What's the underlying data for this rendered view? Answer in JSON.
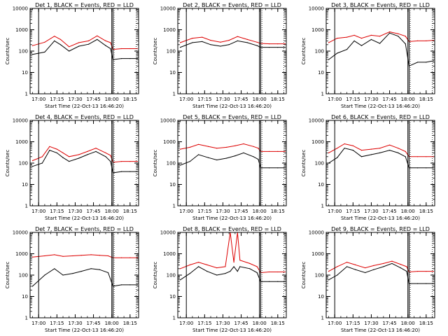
{
  "figure": {
    "colors": {
      "background": "#ffffff",
      "black_series": "#000000",
      "red_series": "#dd0000"
    }
  },
  "chart_data": [
    {
      "type": "line",
      "title": "Det 1, BLACK = Events, RED = LLD",
      "xlabel": "Start Time (22-Oct-13 16:46:20)",
      "ylabel": "Counts/sec",
      "yscale": "log",
      "ylim": [
        1,
        10000
      ],
      "xlim": [
        "16:53",
        "18:22"
      ],
      "x_ticks": [
        "17:00",
        "17:15",
        "17:30",
        "17:45",
        "18:00",
        "18:15"
      ],
      "y_ticks": [
        "1",
        "10",
        "100",
        "1000",
        "10000"
      ],
      "x": [
        "16:55",
        "17:05",
        "17:13",
        "17:18",
        "17:25",
        "17:33",
        "17:41",
        "17:48",
        "17:55",
        "17:59",
        "18:01",
        "18:08",
        "18:15",
        "18:21"
      ],
      "series": [
        {
          "name": "Events",
          "color": "#000000",
          "values": [
            70,
            90,
            300,
            200,
            100,
            170,
            210,
            350,
            180,
            130,
            40,
            45,
            45,
            45
          ]
        },
        {
          "name": "LLD",
          "color": "#dd0000",
          "values": [
            180,
            260,
            500,
            350,
            160,
            250,
            300,
            520,
            300,
            250,
            120,
            130,
            130,
            130
          ]
        }
      ],
      "vlines": [
        "17:00",
        "18:00",
        "18:01"
      ],
      "vlines_dotted": [
        "18:02",
        "18:20"
      ]
    },
    {
      "type": "line",
      "title": "Det 2, BLACK = Events, RED = LLD",
      "xlabel": "Start Time (22-Oct-13 16:46:20)",
      "ylabel": "Counts/sec",
      "yscale": "log",
      "ylim": [
        1,
        10000
      ],
      "xlim": [
        "16:53",
        "18:22"
      ],
      "x_ticks": [
        "17:00",
        "17:15",
        "17:30",
        "17:45",
        "18:00",
        "18:15"
      ],
      "y_ticks": [
        "1",
        "10",
        "100",
        "1000",
        "10000"
      ],
      "x": [
        "16:55",
        "17:05",
        "17:13",
        "17:20",
        "17:28",
        "17:35",
        "17:42",
        "17:50",
        "17:58",
        "18:01",
        "18:08",
        "18:15",
        "18:21"
      ],
      "series": [
        {
          "name": "Events",
          "color": "#000000",
          "values": [
            150,
            250,
            280,
            200,
            170,
            200,
            300,
            250,
            180,
            150,
            150,
            150,
            150
          ]
        },
        {
          "name": "LLD",
          "color": "#dd0000",
          "values": [
            250,
            400,
            450,
            320,
            260,
            320,
            480,
            350,
            260,
            230,
            220,
            220,
            220
          ]
        }
      ],
      "vlines": [
        "17:00",
        "18:00",
        "18:01"
      ],
      "vlines_dotted": [
        "18:02",
        "18:20"
      ]
    },
    {
      "type": "line",
      "title": "Det 3, BLACK = Events, RED = LLD",
      "xlabel": "Start Time (22-Oct-13 16:46:20)",
      "ylabel": "Counts/sec",
      "yscale": "log",
      "ylim": [
        1,
        10000
      ],
      "xlim": [
        "16:53",
        "18:22"
      ],
      "x_ticks": [
        "17:00",
        "17:15",
        "17:30",
        "17:45",
        "18:00",
        "18:15"
      ],
      "y_ticks": [
        "1",
        "10",
        "100",
        "1000",
        "10000"
      ],
      "x": [
        "16:55",
        "17:02",
        "17:10",
        "17:16",
        "17:22",
        "17:30",
        "17:37",
        "17:45",
        "17:52",
        "17:58",
        "18:01",
        "18:08",
        "18:15",
        "18:21"
      ],
      "series": [
        {
          "name": "Events",
          "color": "#000000",
          "values": [
            40,
            80,
            120,
            300,
            180,
            350,
            230,
            700,
            500,
            220,
            20,
            30,
            30,
            35
          ]
        },
        {
          "name": "LLD",
          "color": "#dd0000",
          "values": [
            250,
            400,
            450,
            550,
            400,
            550,
            500,
            800,
            650,
            500,
            280,
            300,
            300,
            320
          ]
        }
      ],
      "vlines": [
        "17:00",
        "18:00",
        "18:01"
      ],
      "vlines_dotted": [
        "18:02",
        "18:20"
      ]
    },
    {
      "type": "line",
      "title": "Det 4, BLACK = Events, RED = LLD",
      "xlabel": "Start Time (22-Oct-13 16:46:20)",
      "ylabel": "Counts/sec",
      "yscale": "log",
      "ylim": [
        1,
        10000
      ],
      "xlim": [
        "16:53",
        "18:22"
      ],
      "x_ticks": [
        "17:00",
        "17:15",
        "17:30",
        "17:45",
        "18:00",
        "18:15"
      ],
      "y_ticks": [
        "1",
        "10",
        "100",
        "1000",
        "10000"
      ],
      "x": [
        "16:55",
        "17:03",
        "17:09",
        "17:15",
        "17:20",
        "17:25",
        "17:33",
        "17:40",
        "17:47",
        "17:55",
        "17:59",
        "18:01",
        "18:08",
        "18:15",
        "18:21"
      ],
      "series": [
        {
          "name": "Events",
          "color": "#000000",
          "values": [
            70,
            100,
            400,
            300,
            180,
            120,
            170,
            250,
            350,
            200,
            120,
            35,
            40,
            40,
            40
          ]
        },
        {
          "name": "LLD",
          "color": "#dd0000",
          "values": [
            130,
            200,
            600,
            450,
            300,
            200,
            250,
            350,
            500,
            300,
            230,
            110,
            120,
            120,
            120
          ]
        }
      ],
      "vlines": [
        "17:00",
        "18:00",
        "18:01"
      ],
      "vlines_dotted": [
        "18:02",
        "18:20"
      ]
    },
    {
      "type": "line",
      "title": "Det 5, BLACK = Events, RED = LLD",
      "xlabel": "Start Time (22-Oct-13 16:46:20)",
      "ylabel": "Counts/sec",
      "yscale": "log",
      "ylim": [
        1,
        10000
      ],
      "xlim": [
        "16:53",
        "18:22"
      ],
      "x_ticks": [
        "17:00",
        "17:15",
        "17:30",
        "17:45",
        "18:00",
        "18:15"
      ],
      "y_ticks": [
        "1",
        "10",
        "100",
        "1000",
        "10000"
      ],
      "x": [
        "16:55",
        "17:03",
        "17:10",
        "17:18",
        "17:25",
        "17:33",
        "17:40",
        "17:47",
        "17:55",
        "17:59",
        "18:01",
        "18:08",
        "18:15",
        "18:21"
      ],
      "series": [
        {
          "name": "Events",
          "color": "#000000",
          "values": [
            80,
            120,
            250,
            180,
            140,
            170,
            220,
            300,
            200,
            150,
            60,
            60,
            60,
            60
          ]
        },
        {
          "name": "LLD",
          "color": "#dd0000",
          "values": [
            450,
            550,
            750,
            600,
            500,
            550,
            650,
            800,
            600,
            500,
            350,
            350,
            350,
            350
          ]
        }
      ],
      "vlines": [
        "17:00",
        "18:00",
        "18:01"
      ],
      "vlines_dotted": [
        "18:02",
        "18:20"
      ]
    },
    {
      "type": "line",
      "title": "Det 6, BLACK = Events, RED = LLD",
      "xlabel": "Start Time (22-Oct-13 16:46:20)",
      "ylabel": "Counts/sec",
      "yscale": "log",
      "ylim": [
        1,
        10000
      ],
      "xlim": [
        "16:53",
        "18:22"
      ],
      "x_ticks": [
        "17:00",
        "17:15",
        "17:30",
        "17:45",
        "18:00",
        "18:15"
      ],
      "y_ticks": [
        "1",
        "10",
        "100",
        "1000",
        "10000"
      ],
      "x": [
        "16:55",
        "17:02",
        "17:08",
        "17:15",
        "17:22",
        "17:30",
        "17:37",
        "17:45",
        "17:52",
        "17:58",
        "18:01",
        "18:08",
        "18:15",
        "18:21"
      ],
      "series": [
        {
          "name": "Events",
          "color": "#000000",
          "values": [
            100,
            180,
            500,
            400,
            200,
            250,
            300,
            400,
            300,
            200,
            60,
            60,
            60,
            60
          ]
        },
        {
          "name": "LLD",
          "color": "#dd0000",
          "values": [
            300,
            500,
            800,
            650,
            400,
            450,
            500,
            700,
            500,
            350,
            200,
            200,
            200,
            200
          ]
        }
      ],
      "vlines": [
        "17:00",
        "18:00",
        "18:01"
      ],
      "vlines_dotted": [
        "18:02",
        "18:20"
      ]
    },
    {
      "type": "line",
      "title": "Det 7, BLACK = Events, RED = LLD",
      "xlabel": "Start Time (22-Oct-13 16:46:20)",
      "ylabel": "Counts/sec",
      "yscale": "log",
      "ylim": [
        1,
        10000
      ],
      "xlim": [
        "16:53",
        "18:22"
      ],
      "x_ticks": [
        "17:00",
        "17:15",
        "17:30",
        "17:45",
        "18:00",
        "18:15"
      ],
      "y_ticks": [
        "1",
        "10",
        "100",
        "1000",
        "10000"
      ],
      "x": [
        "16:55",
        "17:05",
        "17:13",
        "17:20",
        "17:28",
        "17:35",
        "17:43",
        "17:50",
        "17:57",
        "18:01",
        "18:08",
        "18:15",
        "18:21"
      ],
      "series": [
        {
          "name": "Events",
          "color": "#000000",
          "values": [
            30,
            100,
            200,
            100,
            120,
            150,
            200,
            180,
            130,
            30,
            35,
            35,
            35
          ]
        },
        {
          "name": "LLD",
          "color": "#dd0000",
          "values": [
            700,
            800,
            900,
            750,
            800,
            850,
            900,
            850,
            800,
            650,
            650,
            650,
            650
          ]
        }
      ],
      "vlines": [
        "17:00",
        "18:00",
        "18:01"
      ],
      "vlines_dotted": [
        "18:02",
        "18:20"
      ]
    },
    {
      "type": "line",
      "title": "Det 8, BLACK = Events, RED = LLD",
      "xlabel": "Start Time (22-Oct-13 16:46:20)",
      "ylabel": "Counts/sec",
      "yscale": "log",
      "ylim": [
        1,
        10000
      ],
      "xlim": [
        "16:53",
        "18:22"
      ],
      "x_ticks": [
        "17:00",
        "17:15",
        "17:30",
        "17:45",
        "18:00",
        "18:15"
      ],
      "y_ticks": [
        "1",
        "10",
        "100",
        "1000",
        "10000"
      ],
      "x": [
        "16:55",
        "17:03",
        "17:10",
        "17:17",
        "17:25",
        "17:32",
        "17:36",
        "17:39",
        "17:42",
        "17:44",
        "17:52",
        "17:58",
        "18:01",
        "18:08",
        "18:15",
        "18:21"
      ],
      "series": [
        {
          "name": "Events",
          "color": "#000000",
          "values": [
            60,
            120,
            250,
            150,
            100,
            120,
            150,
            250,
            150,
            250,
            200,
            130,
            50,
            50,
            50,
            50
          ]
        },
        {
          "name": "LLD",
          "color": "#dd0000",
          "values": [
            200,
            300,
            400,
            300,
            220,
            250,
            10000,
            400,
            10000,
            500,
            350,
            250,
            130,
            140,
            140,
            140
          ]
        }
      ],
      "vlines": [
        "17:00",
        "18:00",
        "18:01"
      ],
      "vlines_dotted": [
        "18:02",
        "18:20"
      ]
    },
    {
      "type": "line",
      "title": "Det 9, BLACK = Events, RED = LLD",
      "xlabel": "Start Time (22-Oct-13 16:46:20)",
      "ylabel": "Counts/sec",
      "yscale": "log",
      "ylim": [
        1,
        10000
      ],
      "xlim": [
        "16:53",
        "18:22"
      ],
      "x_ticks": [
        "17:00",
        "17:15",
        "17:30",
        "17:45",
        "18:00",
        "18:15"
      ],
      "y_ticks": [
        "1",
        "10",
        "100",
        "1000",
        "10000"
      ],
      "x": [
        "16:55",
        "17:02",
        "17:10",
        "17:17",
        "17:25",
        "17:32",
        "17:40",
        "17:47",
        "17:54",
        "17:59",
        "18:01",
        "18:08",
        "18:15",
        "18:21"
      ],
      "series": [
        {
          "name": "Events",
          "color": "#000000",
          "values": [
            60,
            100,
            250,
            180,
            130,
            180,
            250,
            350,
            220,
            150,
            40,
            40,
            40,
            40
          ]
        },
        {
          "name": "LLD",
          "color": "#dd0000",
          "values": [
            150,
            250,
            400,
            300,
            220,
            280,
            350,
            450,
            320,
            250,
            140,
            150,
            150,
            150
          ]
        }
      ],
      "vlines": [
        "17:00",
        "18:00",
        "18:01"
      ],
      "vlines_dotted": [
        "18:02",
        "18:20"
      ]
    }
  ]
}
